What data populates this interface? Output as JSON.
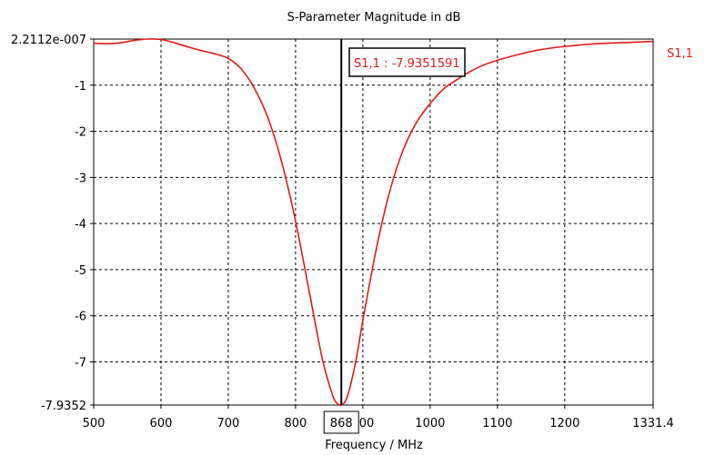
{
  "chart_data": {
    "type": "line",
    "title": "S-Parameter Magnitude in dB",
    "xlabel": "Frequency / MHz",
    "ylabel": "",
    "xlim": [
      500,
      1331.4
    ],
    "ylim": [
      -7.9352,
      0
    ],
    "x_ticks": [
      {
        "value": 500,
        "label": "500"
      },
      {
        "value": 600,
        "label": "600"
      },
      {
        "value": 700,
        "label": "700"
      },
      {
        "value": 800,
        "label": "800"
      },
      {
        "value": 900,
        "label": "900"
      },
      {
        "value": 1000,
        "label": "1000"
      },
      {
        "value": 1100,
        "label": "1100"
      },
      {
        "value": 1200,
        "label": "1200"
      },
      {
        "value": 1331.4,
        "label": "1331.4"
      }
    ],
    "y_ticks": [
      {
        "value": 0,
        "label": "2.2112e-007"
      },
      {
        "value": -1,
        "label": "-1"
      },
      {
        "value": -2,
        "label": "-2"
      },
      {
        "value": -3,
        "label": "-3"
      },
      {
        "value": -4,
        "label": "-4"
      },
      {
        "value": -5,
        "label": "-5"
      },
      {
        "value": -6,
        "label": "-6"
      },
      {
        "value": -7,
        "label": "-7"
      },
      {
        "value": -7.9352,
        "label": "-7.9352"
      }
    ],
    "grid": true,
    "legend_position": "right-top",
    "series": [
      {
        "name": "S1,1",
        "color": "#e01a1a",
        "x": [
          500,
          520,
          540,
          560,
          580,
          600,
          620,
          640,
          660,
          680,
          700,
          720,
          740,
          760,
          780,
          800,
          820,
          840,
          855,
          862,
          868,
          874,
          880,
          890,
          900,
          920,
          940,
          960,
          980,
          1000,
          1020,
          1040,
          1060,
          1080,
          1100,
          1130,
          1160,
          1200,
          1250,
          1300,
          1331.4
        ],
        "y": [
          -0.09,
          -0.1,
          -0.08,
          -0.03,
          0.0,
          -0.01,
          -0.08,
          -0.17,
          -0.25,
          -0.32,
          -0.42,
          -0.66,
          -1.1,
          -1.75,
          -2.7,
          -3.95,
          -5.45,
          -6.95,
          -7.72,
          -7.9,
          -7.9352,
          -7.85,
          -7.6,
          -6.95,
          -6.1,
          -4.55,
          -3.3,
          -2.4,
          -1.8,
          -1.4,
          -1.08,
          -0.88,
          -0.7,
          -0.56,
          -0.46,
          -0.34,
          -0.24,
          -0.16,
          -0.1,
          -0.07,
          -0.05
        ]
      }
    ],
    "marker": {
      "x": 868,
      "x_label": "868",
      "label": "S1,1 : -7.9351591",
      "line_color": "#000000",
      "label_color": "#e01a1a"
    }
  }
}
